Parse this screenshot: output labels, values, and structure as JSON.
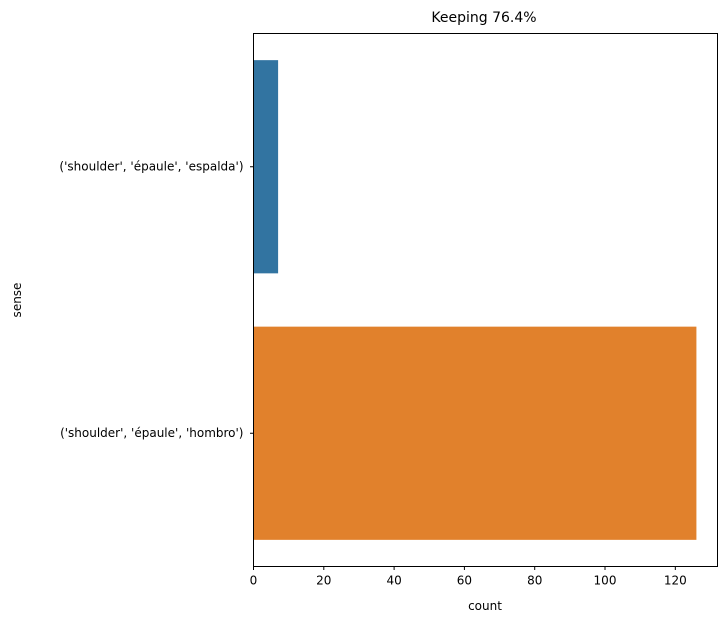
{
  "chart_data": {
    "type": "bar",
    "orientation": "horizontal",
    "title": "Keeping 76.4%",
    "xlabel": "count",
    "ylabel": "sense",
    "categories": [
      "('shoulder', 'épaule', 'espalda')",
      "('shoulder', 'épaule', 'hombro')"
    ],
    "values": [
      7,
      126
    ],
    "colors": [
      "#3274a1",
      "#e1812c"
    ],
    "xlim": [
      0,
      132
    ],
    "xticks": [
      0,
      20,
      40,
      60,
      80,
      100,
      120
    ],
    "grid": false,
    "legend": "none"
  }
}
